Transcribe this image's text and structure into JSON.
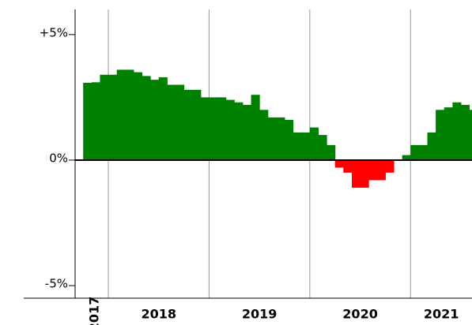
{
  "chart_data": {
    "type": "bar",
    "x": [
      2017.75,
      2017.8333,
      2017.9167,
      2018.0,
      2018.0833,
      2018.1667,
      2018.25,
      2018.3333,
      2018.4167,
      2018.5,
      2018.5833,
      2018.6667,
      2018.75,
      2018.8333,
      2018.9167,
      2019.0,
      2019.0833,
      2019.1667,
      2019.25,
      2019.3333,
      2019.4167,
      2019.5,
      2019.5833,
      2019.6667,
      2019.75,
      2019.8333,
      2019.9167,
      2020.0,
      2020.0833,
      2020.1667,
      2020.25,
      2020.3333,
      2020.4167,
      2020.5,
      2020.5833,
      2020.6667,
      2020.75,
      2020.8333,
      2020.9167,
      2021.0,
      2021.0833,
      2021.1667,
      2021.25,
      2021.3333,
      2021.4167,
      2021.5,
      2021.5833
    ],
    "values": [
      3.08,
      3.1,
      3.4,
      3.4,
      3.6,
      3.6,
      3.5,
      3.35,
      3.2,
      3.3,
      3.0,
      3.0,
      2.8,
      2.8,
      2.5,
      2.5,
      2.5,
      2.4,
      2.3,
      2.2,
      2.6,
      2.0,
      1.7,
      1.7,
      1.6,
      1.1,
      1.1,
      1.3,
      1.0,
      0.6,
      -0.3,
      -0.5,
      -1.1,
      -1.1,
      -0.8,
      -0.8,
      -0.5,
      0,
      0.2,
      0.6,
      0.6,
      1.1,
      2.0,
      2.1,
      2.3,
      2.2,
      2.0
    ],
    "color": "#008000",
    "negative_color": "#ff0000",
    "xlim": [
      2017.67,
      2021.61
    ],
    "xticks": [
      {
        "value": 2017,
        "label": "2017"
      },
      {
        "value": 2018,
        "label": "2018"
      },
      {
        "value": 2019,
        "label": "2019"
      },
      {
        "value": 2020,
        "label": "2020"
      },
      {
        "value": 2021,
        "label": "2021"
      }
    ],
    "ylim": [
      -5.5,
      6
    ],
    "yticks": [
      {
        "value": 5,
        "label": "+5%"
      },
      {
        "value": 0,
        "label": "0%"
      },
      {
        "value": -5,
        "label": "-5%"
      }
    ]
  }
}
